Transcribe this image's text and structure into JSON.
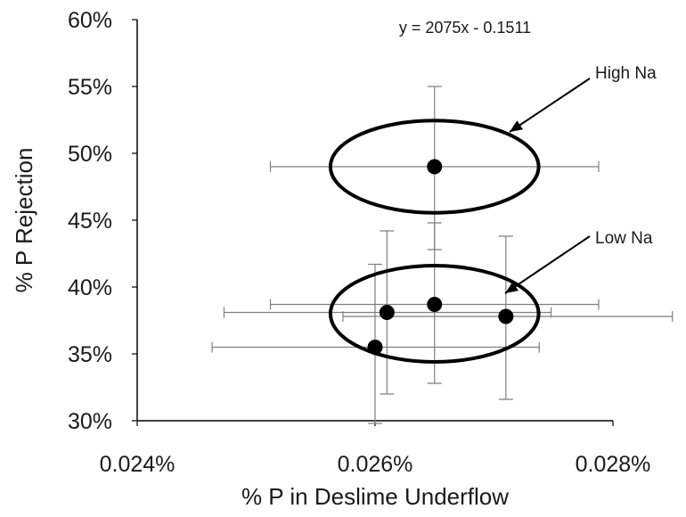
{
  "chart_data": {
    "type": "scatter",
    "title": "",
    "xlabel": "% P in Deslime Underflow",
    "ylabel": "% P Rejection",
    "xlim": [
      0.024,
      0.028
    ],
    "ylim": [
      30,
      60
    ],
    "x_ticks": [
      0.024,
      0.026,
      0.028
    ],
    "x_tick_labels": [
      "0.024%",
      "0.026%",
      "0.028%"
    ],
    "y_ticks": [
      30,
      35,
      40,
      45,
      50,
      55,
      60
    ],
    "y_tick_labels": [
      "30%",
      "35%",
      "40%",
      "45%",
      "50%",
      "55%",
      "60%"
    ],
    "grid": false,
    "legend": "none",
    "points": [
      {
        "x": 0.0265,
        "y": 49.0,
        "xerr": [
          0.02512,
          0.02788
        ],
        "yerr": [
          42.8,
          55.0
        ]
      },
      {
        "x": 0.0265,
        "y": 38.7,
        "xerr": [
          0.02512,
          0.02788
        ],
        "yerr": [
          32.8,
          44.8
        ]
      },
      {
        "x": 0.0261,
        "y": 38.1,
        "xerr": [
          0.02473,
          0.02748
        ],
        "yerr": [
          32.0,
          44.2
        ]
      },
      {
        "x": 0.0271,
        "y": 37.8,
        "xerr": [
          0.02573,
          0.0285
        ],
        "yerr": [
          31.6,
          43.8
        ]
      },
      {
        "x": 0.026,
        "y": 35.5,
        "xerr": [
          0.02463,
          0.02738
        ],
        "yerr": [
          29.8,
          41.7
        ]
      }
    ],
    "trendline": {
      "style": "dotted",
      "x_range": [
        0.025,
        0.0278
      ],
      "slope": 2075,
      "intercept": -0.1511,
      "equation_label": "y = 2075x  - 0.1511"
    },
    "annotations": [
      {
        "text": "High Na",
        "ellipse": {
          "cx": 0.0265,
          "cy": 49.0,
          "rx": 0.000875,
          "ry": 3.45
        }
      },
      {
        "text": "Low Na",
        "ellipse": {
          "cx": 0.0265,
          "cy": 38.0,
          "rx": 0.000875,
          "ry": 3.6
        }
      }
    ],
    "colors": {
      "marker": "#000000",
      "errorbar": "#7f7f7f",
      "axis": "#000000",
      "trendline": "#000000"
    }
  }
}
